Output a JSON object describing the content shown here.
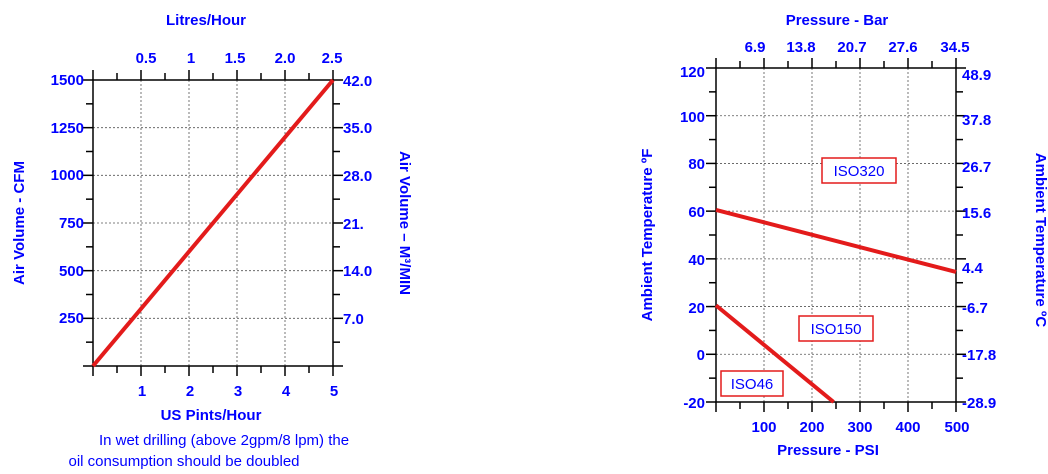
{
  "colors": {
    "text": "#0000ff",
    "series": "#e31b1b",
    "frame": "#000000"
  },
  "chart_data": [
    {
      "type": "line",
      "grid": true,
      "xlabel": "US Pints/Hour",
      "x_ticks": [
        "1",
        "2",
        "3",
        "4",
        "5"
      ],
      "xlim": [
        0,
        5
      ],
      "x2label": "Litres/Hour",
      "x2_ticks": [
        "0.5",
        "1",
        "1.5",
        "2.0",
        "2.5"
      ],
      "ylabel": "Air Volume - CFM",
      "y_ticks": [
        "250",
        "500",
        "750",
        "1000",
        "1250",
        "1500"
      ],
      "ylim": [
        0,
        1500
      ],
      "y2label": "Air Volume – M³/MIN",
      "y2_ticks": [
        "7.0",
        "14.0",
        "21.",
        "28.0",
        "35.0",
        "42.0"
      ],
      "series": [
        {
          "x": [
            0,
            5
          ],
          "y": [
            0,
            1500
          ]
        }
      ],
      "note_lines": [
        "In wet drilling (above 2gpm/8 lpm) the",
        "oil consumption should be doubled"
      ]
    },
    {
      "type": "line",
      "grid": true,
      "xlabel": "Pressure - PSI",
      "x_ticks": [
        "100",
        "200",
        "300",
        "400",
        "500"
      ],
      "xlim": [
        0,
        500
      ],
      "x2label": "Pressure - Bar",
      "x2_ticks": [
        "6.9",
        "13.8",
        "20.7",
        "27.6",
        "34.5"
      ],
      "ylabel": "Ambient Temperature ºF",
      "y_ticks": [
        "-20",
        "0",
        "20",
        "40",
        "60",
        "80",
        "100",
        "120"
      ],
      "ylim": [
        -20,
        120
      ],
      "y2label": "Ambient Temperature ºC",
      "y2_ticks": [
        "-28.9",
        "-17.8",
        "-6.7",
        "4.4",
        "15.6",
        "26.7",
        "37.8",
        "48.9"
      ],
      "series": [
        {
          "x": [
            0,
            500
          ],
          "y": [
            60.5,
            34.5
          ]
        },
        {
          "x": [
            0,
            245
          ],
          "y": [
            20.5,
            -20
          ]
        }
      ],
      "region_labels": [
        "ISO320",
        "ISO150",
        "ISO46"
      ]
    }
  ]
}
